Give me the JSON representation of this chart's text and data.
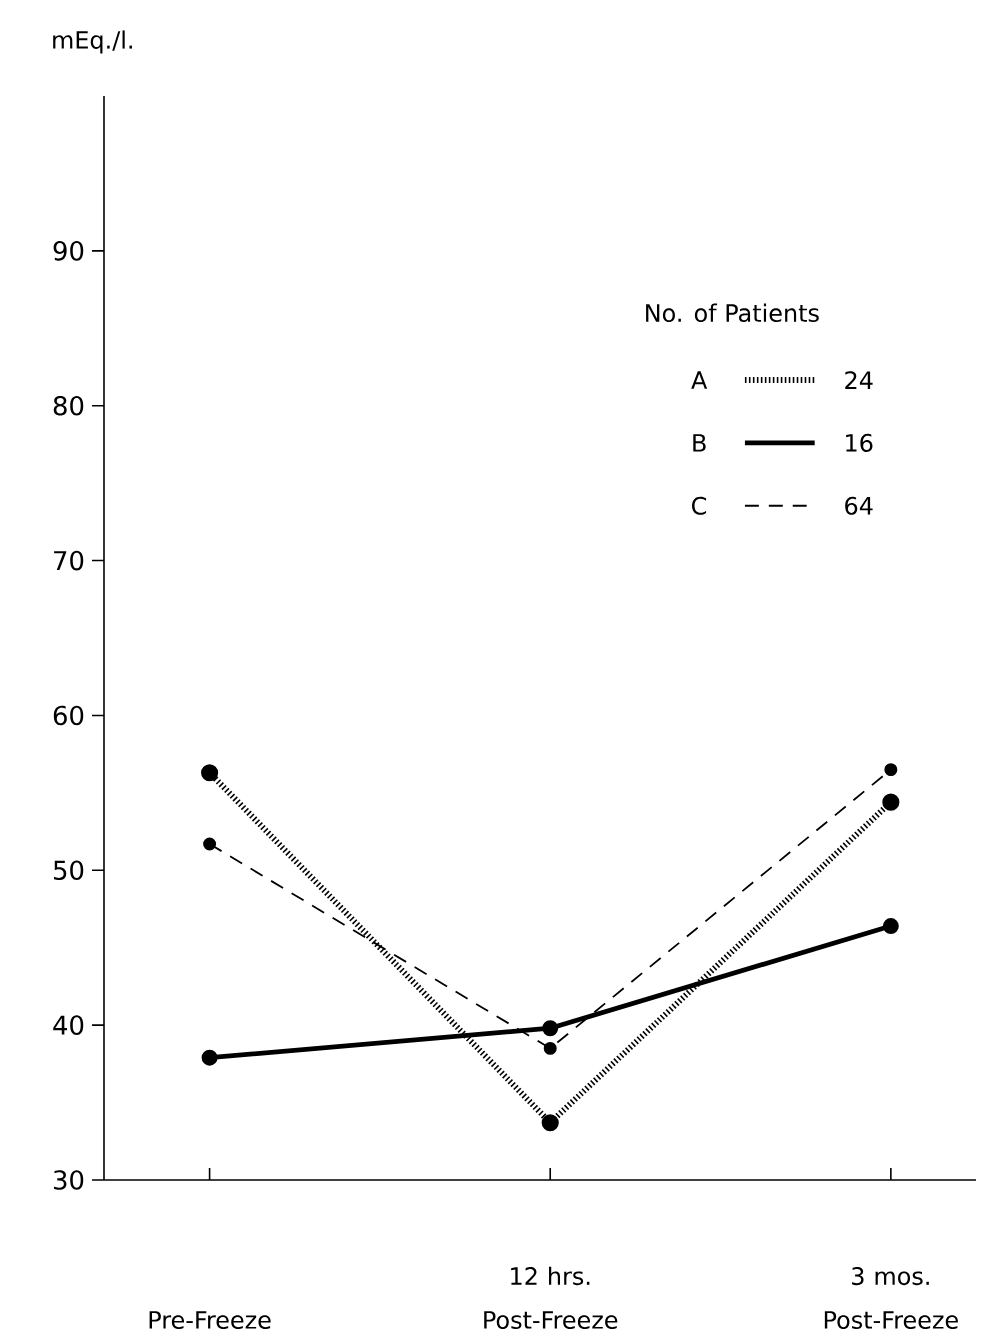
{
  "chart_data": {
    "type": "line",
    "ylabel": "mEq./l.",
    "legend_title": "No. of Patients",
    "categories": [
      "Pre-Freeze",
      "12 hrs. Post-Freeze",
      "3 mos. Post-Freeze"
    ],
    "series": [
      {
        "name": "A",
        "color": "#000000",
        "line_style": "dotted",
        "values": [
          56.3,
          33.7,
          54.4
        ]
      },
      {
        "name": "B",
        "color": "#000000",
        "line_style": "solid",
        "values": [
          37.9,
          39.8,
          46.4
        ]
      },
      {
        "name": "C",
        "color": "#000000",
        "line_style": "dashed",
        "values": [
          51.7,
          38.5,
          56.5
        ]
      }
    ],
    "annotations": [
      "24",
      "16",
      "64"
    ],
    "ylim": [
      30,
      100
    ],
    "yticks": [
      30,
      40,
      50,
      60,
      70,
      80,
      90
    ],
    "marker": "circle",
    "legend": "top right",
    "grid": false
  }
}
